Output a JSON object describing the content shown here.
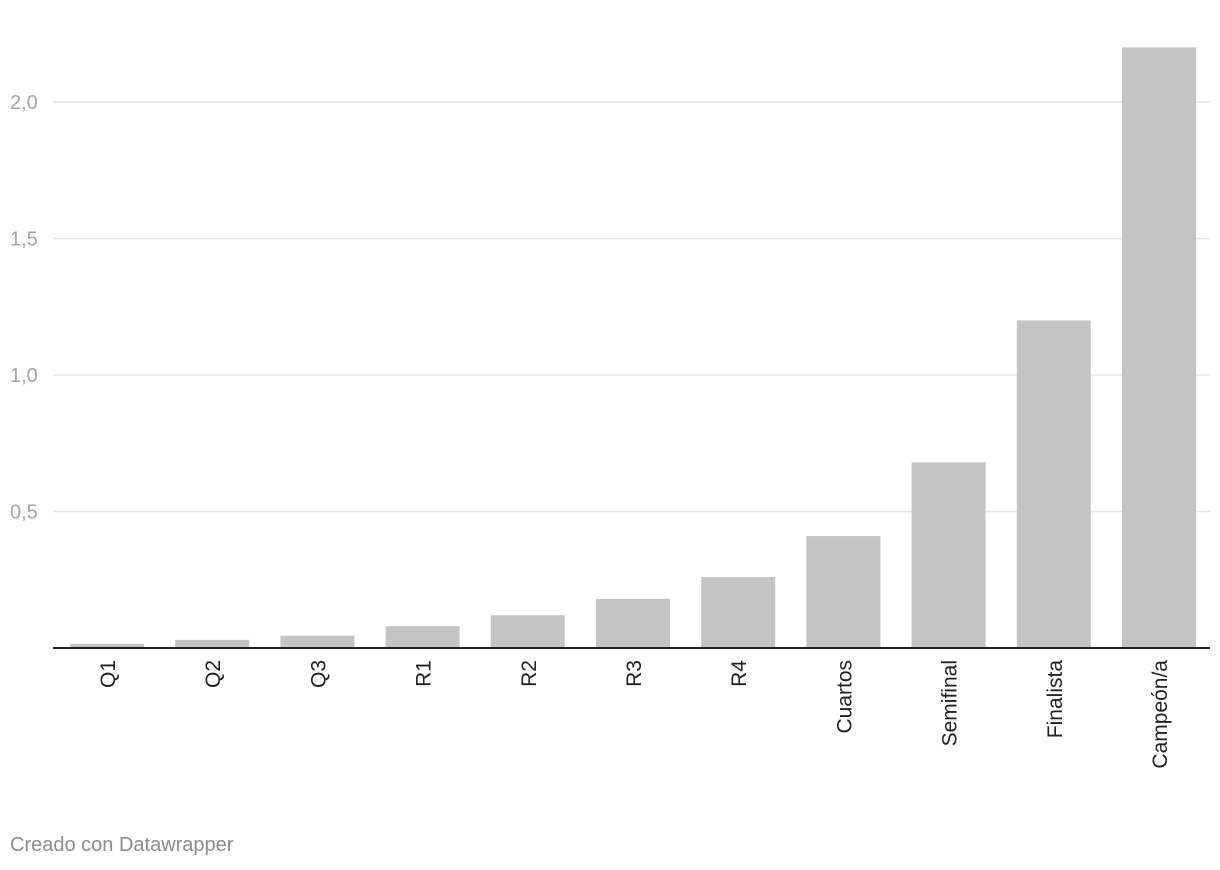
{
  "chart_data": {
    "type": "bar",
    "categories": [
      "Q1",
      "Q2",
      "Q3",
      "R1",
      "R2",
      "R3",
      "R4",
      "Cuartos",
      "Semifinal",
      "Finalista",
      "Campeón/a"
    ],
    "values": [
      0.015,
      0.03,
      0.045,
      0.08,
      0.12,
      0.18,
      0.26,
      0.41,
      0.68,
      1.2,
      2.2
    ],
    "title": "",
    "xlabel": "",
    "ylabel": "",
    "ylim": [
      0,
      2.2
    ],
    "yticks": [
      {
        "value": 0.5,
        "label": "0,5"
      },
      {
        "value": 1.0,
        "label": "1,0"
      },
      {
        "value": 1.5,
        "label": "1,5"
      },
      {
        "value": 2.0,
        "label": "2,0"
      }
    ],
    "grid": true,
    "legend": "none",
    "bar_color": "#c4c4c4",
    "grid_color": "#e5e5e5",
    "axis_color": "#222222"
  },
  "footer": {
    "credit": "Creado con Datawrapper"
  }
}
